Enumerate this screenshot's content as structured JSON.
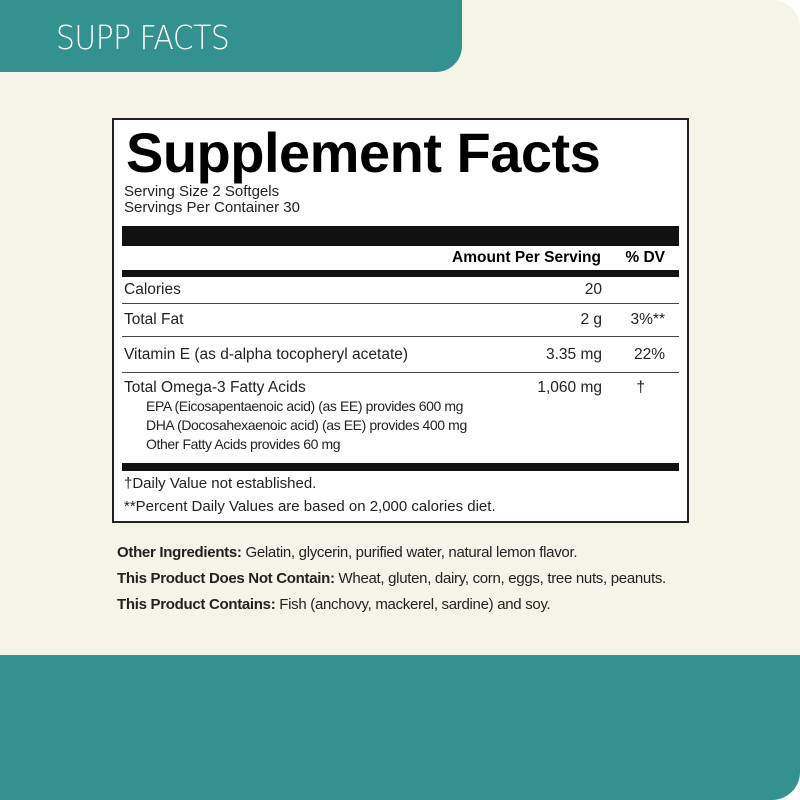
{
  "header": {
    "tab_label": "SUPP FACTS"
  },
  "colors": {
    "teal": "#33918f",
    "cream": "#f6f4e6"
  },
  "facts": {
    "title": "Supplement Facts",
    "serving_size": "Serving Size 2 Softgels",
    "servings_per_container": "Servings Per Container 30",
    "col_amount": "Amount Per Serving",
    "col_dv": "% DV",
    "rows": [
      {
        "name": "Calories",
        "amount": "20",
        "dv": ""
      },
      {
        "name": "Total Fat",
        "amount": "2 g",
        "dv": "3%**"
      },
      {
        "name": "Vitamin E (as d-alpha tocopheryl acetate)",
        "amount": "3.35 mg",
        "dv": "22%"
      },
      {
        "name": "Total Omega-3 Fatty Acids",
        "amount": "1,060 mg",
        "dv": "†",
        "sub": [
          "EPA (Eicosapentaenoic acid) (as EE) provides 600 mg",
          "DHA (Docosahexaenoic acid) (as EE) provides 400 mg",
          "Other Fatty Acids provides 60 mg"
        ]
      }
    ],
    "footnote1": "†Daily Value not established.",
    "footnote2": "**Percent Daily Values are based on 2,000 calories diet."
  },
  "ingredients": [
    {
      "label": "Other Ingredients:",
      "text": " Gelatin, glycerin, purified water, natural lemon flavor."
    },
    {
      "label": "This Product Does Not Contain:",
      "text": " Wheat, gluten, dairy, corn, eggs, tree nuts, peanuts."
    },
    {
      "label": "This Product Contains:",
      "text": " Fish (anchovy, mackerel, sardine) and soy."
    }
  ]
}
